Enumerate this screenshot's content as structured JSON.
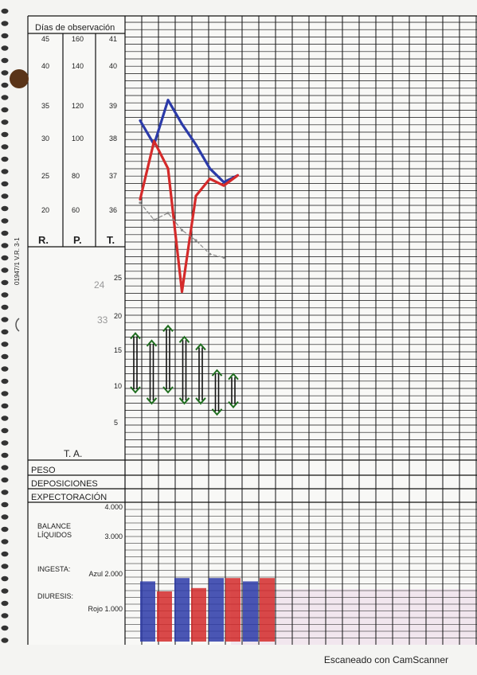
{
  "sheet": {
    "header": "Días de observación",
    "scale_R": [
      "45",
      "40",
      "35",
      "30",
      "25",
      "20"
    ],
    "scale_P": [
      "160",
      "140",
      "120",
      "100",
      "80",
      "60"
    ],
    "scale_T": [
      "41",
      "40",
      "39",
      "38",
      "37",
      "36"
    ],
    "col_R": "R.",
    "col_P": "P.",
    "col_T": "T.",
    "side_code": "01947/1  V.R. 3-1",
    "ta_label": "T. A.",
    "ta_scale": [
      "25",
      "20",
      "15",
      "10",
      "5"
    ],
    "handwritten_notes": [
      "24",
      "33"
    ],
    "rows": [
      "PESO",
      "DEPOSICIONES",
      "EXPECTORACIÓN"
    ],
    "balance_label_1": "BALANCE",
    "balance_label_2": "LÍQUIDOS",
    "ingesta_label": "INGESTA:",
    "diuresis_label": "DIURESIS:",
    "liquid_scale": [
      "4.000",
      "3.000",
      "Azul 2.000",
      "Rojo 1.000"
    ]
  },
  "footer": "Escaneado con CamScanner",
  "colors": {
    "blue": "#2b3aa8",
    "red": "#d42a2a",
    "green": "#1f6e1f",
    "grid": "#111111",
    "paper": "#f7f7f5",
    "pink_shade": "#f1e6ee"
  },
  "chart_data": {
    "type": "line",
    "x_label": "Días de observación",
    "series": [
      {
        "name": "blue",
        "scale": "T",
        "values": [
          38.5,
          37.8,
          39.1,
          38.4,
          37.8,
          37.1,
          36.7,
          36.9
        ]
      },
      {
        "name": "red",
        "scale": "T",
        "values": [
          36.2,
          37.9,
          37.1,
          33.5,
          36.3,
          36.8,
          36.6,
          36.9
        ]
      },
      {
        "name": "grey",
        "scale": "T",
        "values": [
          36.1,
          35.6,
          35.8,
          35.3,
          35.0,
          34.6,
          34.5
        ]
      },
      {
        "name": "blood_pressure",
        "scale": "T.A.",
        "ranges": [
          [
            18,
            10
          ],
          [
            17,
            8.5
          ],
          [
            19,
            10
          ],
          [
            17.5,
            8.5
          ],
          [
            16.5,
            8.5
          ],
          [
            13,
            7
          ],
          [
            12.5,
            8
          ]
        ]
      },
      {
        "name": "ingesta",
        "scale": "liquids",
        "color": "blue",
        "values": [
          1800,
          1900,
          1900,
          1800
        ]
      },
      {
        "name": "diuresis",
        "scale": "liquids",
        "color": "red",
        "values": [
          1500,
          1600,
          1900,
          1900
        ]
      }
    ]
  }
}
